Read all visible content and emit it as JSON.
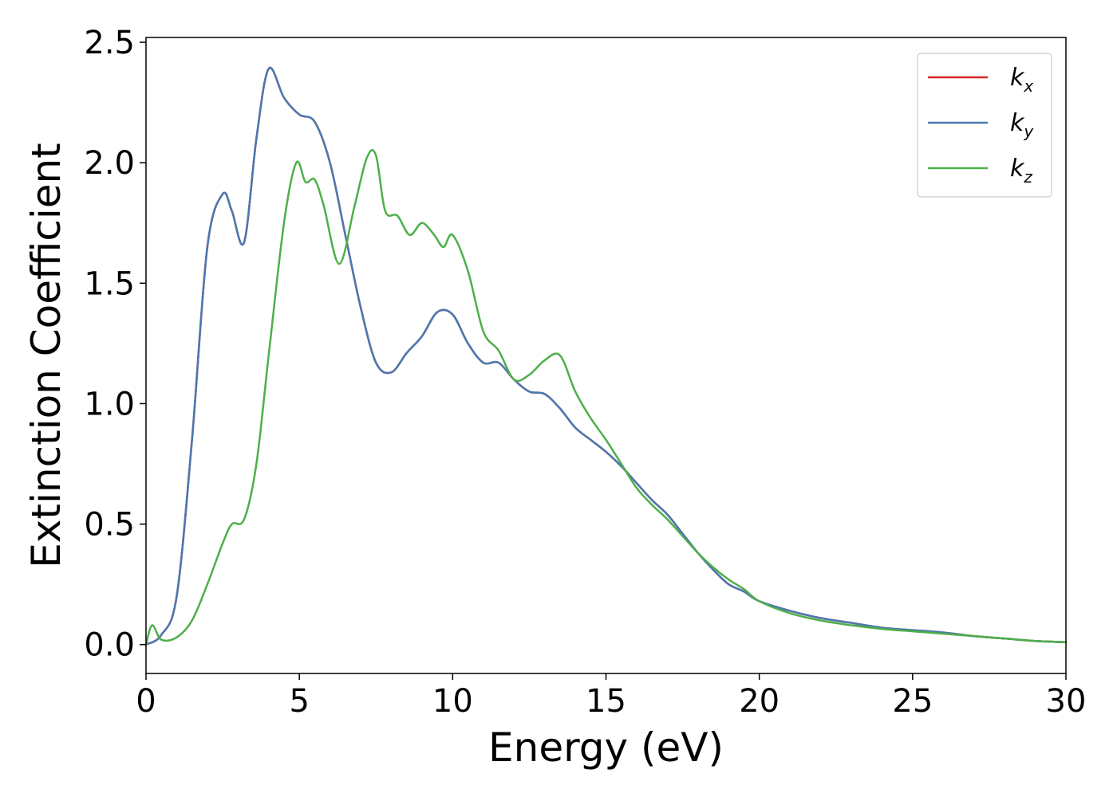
{
  "chart_data": {
    "type": "line",
    "xlabel": "Energy (eV)",
    "ylabel": "Extinction Coefficient",
    "xlim": [
      0,
      30
    ],
    "ylim": [
      -0.12,
      2.52
    ],
    "xticks": [
      0,
      5,
      10,
      15,
      20,
      25,
      30
    ],
    "xtick_labels": [
      "0",
      "5",
      "10",
      "15",
      "20",
      "25",
      "30"
    ],
    "yticks": [
      0.0,
      0.5,
      1.0,
      1.5,
      2.0,
      2.5
    ],
    "ytick_labels": [
      "0.0",
      "0.5",
      "1.0",
      "1.5",
      "2.0",
      "2.5"
    ],
    "grid": false,
    "legend_position": "top-right",
    "series": [
      {
        "name": "kx",
        "legend_base": "k",
        "legend_sub": "x",
        "color": "#d62728",
        "x": [
          0,
          0.5,
          1.0,
          1.5,
          2.0,
          2.5,
          2.8,
          3.2,
          3.6,
          4.0,
          4.5,
          5.0,
          5.5,
          6.0,
          6.5,
          7.0,
          7.5,
          8.0,
          8.5,
          9.0,
          9.5,
          10.0,
          10.5,
          11.0,
          11.5,
          12.0,
          12.5,
          13.0,
          13.5,
          14.0,
          14.5,
          15.0,
          15.5,
          16.0,
          16.5,
          17.0,
          17.5,
          18.0,
          18.5,
          19.0,
          19.5,
          20.0,
          21.0,
          22.0,
          23.0,
          24.0,
          25.0,
          26.0,
          27.0,
          28.0,
          29.0,
          30.0
        ],
        "y": [
          0.0,
          0.04,
          0.2,
          0.85,
          1.65,
          1.87,
          1.8,
          1.67,
          2.1,
          2.39,
          2.27,
          2.2,
          2.17,
          2.0,
          1.7,
          1.4,
          1.17,
          1.13,
          1.21,
          1.28,
          1.38,
          1.37,
          1.25,
          1.17,
          1.17,
          1.1,
          1.05,
          1.04,
          0.98,
          0.9,
          0.85,
          0.8,
          0.74,
          0.67,
          0.6,
          0.54,
          0.46,
          0.38,
          0.31,
          0.25,
          0.22,
          0.18,
          0.14,
          0.11,
          0.09,
          0.07,
          0.06,
          0.05,
          0.035,
          0.025,
          0.015,
          0.01
        ]
      },
      {
        "name": "ky",
        "legend_base": "k",
        "legend_sub": "y",
        "color": "#4a78b0",
        "x": [
          0,
          0.5,
          1.0,
          1.5,
          2.0,
          2.5,
          2.8,
          3.2,
          3.6,
          4.0,
          4.5,
          5.0,
          5.5,
          6.0,
          6.5,
          7.0,
          7.5,
          8.0,
          8.5,
          9.0,
          9.5,
          10.0,
          10.5,
          11.0,
          11.5,
          12.0,
          12.5,
          13.0,
          13.5,
          14.0,
          14.5,
          15.0,
          15.5,
          16.0,
          16.5,
          17.0,
          17.5,
          18.0,
          18.5,
          19.0,
          19.5,
          20.0,
          21.0,
          22.0,
          23.0,
          24.0,
          25.0,
          26.0,
          27.0,
          28.0,
          29.0,
          30.0
        ],
        "y": [
          0.0,
          0.04,
          0.2,
          0.85,
          1.65,
          1.87,
          1.8,
          1.67,
          2.1,
          2.39,
          2.27,
          2.2,
          2.17,
          2.0,
          1.7,
          1.4,
          1.17,
          1.13,
          1.21,
          1.28,
          1.38,
          1.37,
          1.25,
          1.17,
          1.17,
          1.1,
          1.05,
          1.04,
          0.98,
          0.9,
          0.85,
          0.8,
          0.74,
          0.67,
          0.6,
          0.54,
          0.46,
          0.38,
          0.31,
          0.25,
          0.22,
          0.18,
          0.14,
          0.11,
          0.09,
          0.07,
          0.06,
          0.05,
          0.035,
          0.025,
          0.015,
          0.01
        ]
      },
      {
        "name": "kz",
        "legend_base": "k",
        "legend_sub": "z",
        "color": "#4daf4a",
        "x": [
          0,
          0.2,
          0.5,
          1.0,
          1.5,
          2.0,
          2.5,
          2.8,
          3.2,
          3.6,
          4.0,
          4.5,
          4.9,
          5.2,
          5.5,
          5.8,
          6.3,
          6.8,
          7.2,
          7.5,
          7.8,
          8.2,
          8.6,
          9.0,
          9.4,
          9.7,
          10.0,
          10.5,
          11.0,
          11.5,
          12.0,
          12.5,
          13.0,
          13.5,
          14.0,
          14.5,
          15.0,
          15.5,
          16.0,
          16.5,
          17.0,
          17.5,
          18.0,
          18.5,
          19.0,
          19.5,
          20.0,
          21.0,
          22.0,
          23.0,
          24.0,
          25.0,
          26.0,
          27.0,
          28.0,
          29.0,
          30.0
        ],
        "y": [
          0.0,
          0.08,
          0.02,
          0.03,
          0.1,
          0.25,
          0.42,
          0.5,
          0.52,
          0.75,
          1.2,
          1.75,
          2.0,
          1.92,
          1.93,
          1.82,
          1.58,
          1.82,
          2.02,
          2.03,
          1.8,
          1.78,
          1.7,
          1.75,
          1.7,
          1.65,
          1.7,
          1.55,
          1.3,
          1.22,
          1.1,
          1.12,
          1.18,
          1.2,
          1.05,
          0.94,
          0.85,
          0.75,
          0.65,
          0.58,
          0.52,
          0.45,
          0.38,
          0.32,
          0.27,
          0.23,
          0.18,
          0.13,
          0.1,
          0.08,
          0.065,
          0.055,
          0.045,
          0.035,
          0.025,
          0.015,
          0.01
        ]
      }
    ]
  }
}
